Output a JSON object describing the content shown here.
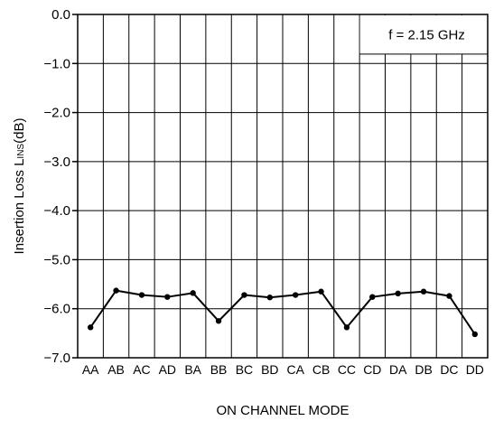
{
  "chart_data": {
    "type": "line",
    "xlabel": "ON CHANNEL MODE",
    "ylabel": "Insertion Loss  L",
    "ylabel_sub": "INS",
    "ylabel_unit": "(dB)",
    "annotation": "f = 2.15 GHz",
    "ylim": [
      -7.0,
      0.0
    ],
    "y_ticks": [
      "0.0",
      "−1.0",
      "−2.0",
      "−3.0",
      "−4.0",
      "−5.0",
      "−6.0",
      "−7.0"
    ],
    "grid": true,
    "categories": [
      "AA",
      "AB",
      "AC",
      "AD",
      "BA",
      "BB",
      "BC",
      "BD",
      "CA",
      "CB",
      "CC",
      "CD",
      "DA",
      "DB",
      "DC",
      "DD"
    ],
    "series": [
      {
        "values": [
          -6.38,
          -5.63,
          -5.72,
          -5.76,
          -5.68,
          -6.25,
          -5.72,
          -5.77,
          -5.72,
          -5.65,
          -6.38,
          -5.76,
          -5.69,
          -5.65,
          -5.74,
          -6.52
        ]
      }
    ],
    "colors": {
      "line": "#000000",
      "grid": "#000000"
    }
  }
}
